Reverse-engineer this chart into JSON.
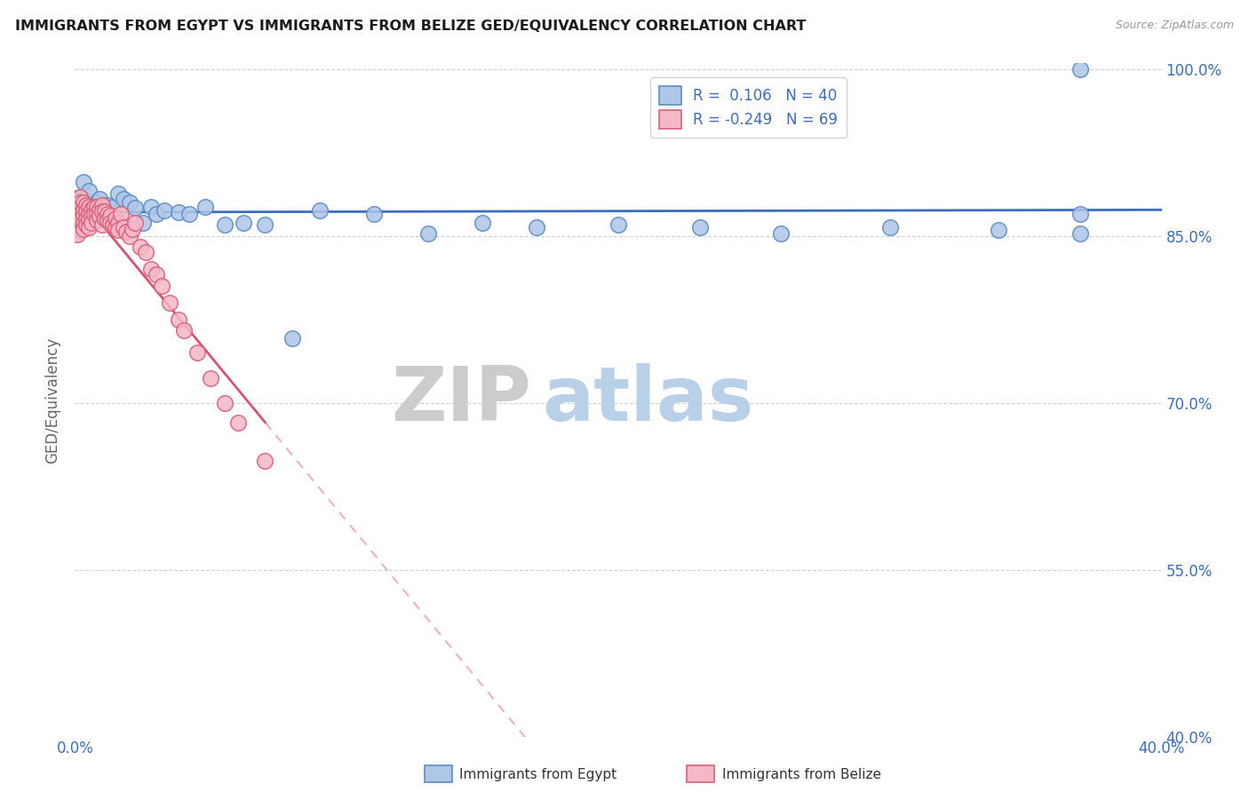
{
  "title": "IMMIGRANTS FROM EGYPT VS IMMIGRANTS FROM BELIZE GED/EQUIVALENCY CORRELATION CHART",
  "source": "Source: ZipAtlas.com",
  "ylabel": "GED/Equivalency",
  "xmin": 0.0,
  "xmax": 0.4,
  "ymin": 0.4,
  "ymax": 1.005,
  "xtick_positions": [
    0.0,
    0.05,
    0.1,
    0.15,
    0.2,
    0.25,
    0.3,
    0.35,
    0.4
  ],
  "xticklabels": [
    "0.0%",
    "",
    "",
    "",
    "",
    "",
    "",
    "",
    "40.0%"
  ],
  "ytick_positions": [
    0.4,
    0.55,
    0.7,
    0.85,
    1.0
  ],
  "yticklabels": [
    "40.0%",
    "55.0%",
    "70.0%",
    "85.0%",
    "100.0%"
  ],
  "egypt_fill": "#aec6e8",
  "egypt_edge": "#5b8ec4",
  "belize_fill": "#f5b8c8",
  "belize_edge": "#d9607a",
  "trend_egypt_color": "#3b6dbf",
  "trend_belize_solid_color": "#d9536e",
  "trend_belize_dash_color": "#f0b0bc",
  "legend_egypt_label": "R =  0.106   N = 40",
  "legend_belize_label": "R = -0.249   N = 69",
  "watermark_zip": "ZIP",
  "watermark_atlas": "atlas",
  "bottom_label_egypt": "Immigrants from Egypt",
  "bottom_label_belize": "Immigrants from Belize",
  "egypt_x": [
    0.001,
    0.002,
    0.003,
    0.004,
    0.005,
    0.006,
    0.007,
    0.008,
    0.009,
    0.01,
    0.012,
    0.014,
    0.016,
    0.018,
    0.02,
    0.022,
    0.025,
    0.028,
    0.03,
    0.033,
    0.038,
    0.042,
    0.048,
    0.055,
    0.062,
    0.07,
    0.08,
    0.09,
    0.11,
    0.13,
    0.15,
    0.17,
    0.2,
    0.23,
    0.26,
    0.3,
    0.34,
    0.37,
    0.37,
    0.37
  ],
  "egypt_y": [
    0.883,
    0.885,
    0.898,
    0.882,
    0.89,
    0.877,
    0.875,
    0.88,
    0.883,
    0.876,
    0.878,
    0.876,
    0.888,
    0.883,
    0.88,
    0.875,
    0.862,
    0.876,
    0.87,
    0.873,
    0.871,
    0.87,
    0.876,
    0.86,
    0.862,
    0.86,
    0.758,
    0.873,
    0.87,
    0.852,
    0.862,
    0.858,
    0.86,
    0.858,
    0.852,
    0.858,
    0.855,
    1.0,
    0.87,
    0.852
  ],
  "belize_x": [
    0.001,
    0.001,
    0.001,
    0.001,
    0.001,
    0.001,
    0.001,
    0.001,
    0.002,
    0.002,
    0.002,
    0.002,
    0.002,
    0.003,
    0.003,
    0.003,
    0.003,
    0.003,
    0.004,
    0.004,
    0.004,
    0.004,
    0.005,
    0.005,
    0.005,
    0.005,
    0.006,
    0.006,
    0.006,
    0.007,
    0.007,
    0.008,
    0.008,
    0.008,
    0.009,
    0.009,
    0.01,
    0.01,
    0.01,
    0.011,
    0.011,
    0.012,
    0.012,
    0.013,
    0.013,
    0.014,
    0.015,
    0.015,
    0.016,
    0.016,
    0.017,
    0.018,
    0.019,
    0.02,
    0.021,
    0.022,
    0.024,
    0.026,
    0.028,
    0.03,
    0.032,
    0.035,
    0.038,
    0.04,
    0.045,
    0.05,
    0.055,
    0.06,
    0.07
  ],
  "belize_y": [
    0.882,
    0.878,
    0.873,
    0.868,
    0.864,
    0.86,
    0.855,
    0.851,
    0.885,
    0.88,
    0.875,
    0.87,
    0.865,
    0.88,
    0.874,
    0.868,
    0.862,
    0.856,
    0.878,
    0.872,
    0.866,
    0.86,
    0.876,
    0.87,
    0.864,
    0.858,
    0.874,
    0.868,
    0.862,
    0.876,
    0.87,
    0.876,
    0.87,
    0.864,
    0.874,
    0.868,
    0.878,
    0.872,
    0.86,
    0.872,
    0.866,
    0.87,
    0.864,
    0.868,
    0.862,
    0.86,
    0.866,
    0.858,
    0.862,
    0.855,
    0.87,
    0.858,
    0.854,
    0.85,
    0.856,
    0.862,
    0.84,
    0.835,
    0.82,
    0.815,
    0.805,
    0.79,
    0.775,
    0.765,
    0.745,
    0.722,
    0.7,
    0.682,
    0.648
  ]
}
